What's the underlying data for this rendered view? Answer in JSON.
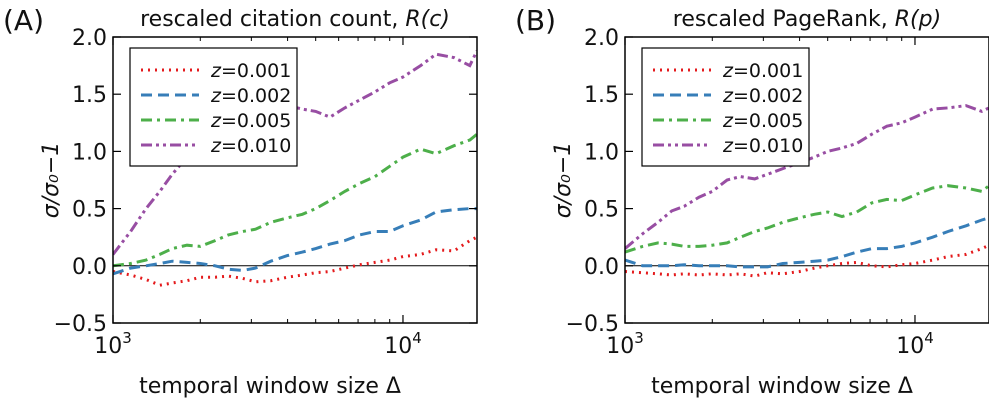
{
  "chart_data": [
    {
      "panel_label": "(A)",
      "type": "line",
      "title": "rescaled citation count, ",
      "title_math": "R(c)",
      "xlabel": "temporal window size Δ",
      "ylabel": "σ/σ₀−1",
      "xscale": "log",
      "xlim": [
        1000,
        18000
      ],
      "ylim": [
        -0.5,
        2.0
      ],
      "yticks": [
        "−0.5",
        "0.0",
        "0.5",
        "1.0",
        "1.5",
        "2.0"
      ],
      "xticks": [
        {
          "base": "10",
          "exp": "3",
          "value": 1000
        },
        {
          "base": "10",
          "exp": "4",
          "value": 10000
        }
      ],
      "grid": false,
      "legend_position": "top-left",
      "series": [
        {
          "name": "z=0.001",
          "name_var": "z",
          "name_val": "=0.001",
          "color": "#e41a1c",
          "dash": "dotted",
          "x": [
            1000,
            1150,
            1300,
            1450,
            1600,
            1800,
            2000,
            2250,
            2500,
            2800,
            3100,
            3500,
            4000,
            4500,
            5000,
            5600,
            6300,
            7100,
            8000,
            9000,
            10000,
            11500,
            13000,
            15000,
            17000,
            18000
          ],
          "y": [
            -0.05,
            -0.08,
            -0.12,
            -0.17,
            -0.15,
            -0.13,
            -0.1,
            -0.1,
            -0.09,
            -0.11,
            -0.14,
            -0.13,
            -0.1,
            -0.08,
            -0.06,
            -0.05,
            -0.02,
            0.01,
            0.03,
            0.05,
            0.08,
            0.1,
            0.14,
            0.13,
            0.22,
            0.25
          ]
        },
        {
          "name": "z=0.002",
          "name_var": "z",
          "name_val": "=0.002",
          "color": "#377eb8",
          "dash": "dashed",
          "x": [
            1000,
            1150,
            1300,
            1450,
            1600,
            1800,
            2000,
            2250,
            2500,
            2800,
            3100,
            3500,
            4000,
            4500,
            5000,
            5600,
            6300,
            7100,
            8000,
            9000,
            10000,
            11500,
            13000,
            15000,
            17000,
            18000
          ],
          "y": [
            -0.07,
            -0.02,
            0.0,
            0.02,
            0.04,
            0.03,
            0.02,
            0.0,
            -0.03,
            -0.04,
            -0.02,
            0.04,
            0.09,
            0.12,
            0.15,
            0.19,
            0.22,
            0.27,
            0.3,
            0.3,
            0.35,
            0.4,
            0.47,
            0.49,
            0.5,
            0.5
          ]
        },
        {
          "name": "z=0.005",
          "name_var": "z",
          "name_val": "=0.005",
          "color": "#4daf4a",
          "dash": "dashdot",
          "x": [
            1000,
            1150,
            1300,
            1450,
            1600,
            1800,
            2000,
            2250,
            2500,
            2800,
            3100,
            3500,
            4000,
            4500,
            5000,
            5600,
            6300,
            7100,
            8000,
            9000,
            10000,
            11500,
            13000,
            15000,
            17000,
            18000
          ],
          "y": [
            0.0,
            0.02,
            0.05,
            0.1,
            0.15,
            0.18,
            0.17,
            0.22,
            0.27,
            0.3,
            0.32,
            0.38,
            0.42,
            0.45,
            0.5,
            0.57,
            0.65,
            0.72,
            0.78,
            0.87,
            0.95,
            1.02,
            0.98,
            1.05,
            1.1,
            1.15
          ]
        },
        {
          "name": "z=0.010",
          "name_var": "z",
          "name_val": "=0.010",
          "color": "#984ea3",
          "dash": "dashdotdot",
          "x": [
            1000,
            1150,
            1300,
            1450,
            1600,
            1800,
            2000,
            2250,
            2500,
            2800,
            3100,
            3500,
            4000,
            4500,
            5000,
            5600,
            6300,
            7100,
            8000,
            9000,
            10000,
            11500,
            13000,
            15000,
            17000,
            18000
          ],
          "y": [
            0.1,
            0.3,
            0.5,
            0.65,
            0.8,
            0.95,
            1.08,
            1.15,
            1.2,
            1.25,
            1.3,
            1.33,
            1.4,
            1.37,
            1.35,
            1.3,
            1.38,
            1.45,
            1.52,
            1.6,
            1.65,
            1.75,
            1.85,
            1.82,
            1.75,
            1.88
          ]
        }
      ]
    },
    {
      "panel_label": "(B)",
      "type": "line",
      "title": "rescaled PageRank, ",
      "title_math": "R(p)",
      "xlabel": "temporal window size Δ",
      "ylabel": "σ/σ₀−1",
      "xscale": "log",
      "xlim": [
        1000,
        18000
      ],
      "ylim": [
        -0.5,
        2.0
      ],
      "yticks": [
        "−0.5",
        "0.0",
        "0.5",
        "1.0",
        "1.5",
        "2.0"
      ],
      "xticks": [
        {
          "base": "10",
          "exp": "3",
          "value": 1000
        },
        {
          "base": "10",
          "exp": "4",
          "value": 10000
        }
      ],
      "grid": false,
      "legend_position": "top-left",
      "series": [
        {
          "name": "z=0.001",
          "name_var": "z",
          "name_val": "=0.001",
          "color": "#e41a1c",
          "dash": "dotted",
          "x": [
            1000,
            1150,
            1300,
            1450,
            1600,
            1800,
            2000,
            2250,
            2500,
            2800,
            3100,
            3500,
            4000,
            4500,
            5000,
            5600,
            6300,
            7100,
            8000,
            9000,
            10000,
            11500,
            13000,
            15000,
            17000,
            18000
          ],
          "y": [
            -0.05,
            -0.06,
            -0.07,
            -0.08,
            -0.07,
            -0.08,
            -0.07,
            -0.08,
            -0.07,
            -0.09,
            -0.06,
            -0.07,
            -0.05,
            -0.02,
            0.0,
            0.02,
            0.03,
            0.0,
            -0.01,
            0.01,
            0.02,
            0.05,
            0.08,
            0.1,
            0.15,
            0.18
          ]
        },
        {
          "name": "z=0.002",
          "name_var": "z",
          "name_val": "=0.002",
          "color": "#377eb8",
          "dash": "dashed",
          "x": [
            1000,
            1150,
            1300,
            1450,
            1600,
            1800,
            2000,
            2250,
            2500,
            2800,
            3100,
            3500,
            4000,
            4500,
            5000,
            5600,
            6300,
            7100,
            8000,
            9000,
            10000,
            11500,
            13000,
            15000,
            17000,
            18000
          ],
          "y": [
            0.05,
            0.0,
            0.0,
            0.0,
            0.01,
            0.0,
            0.0,
            0.0,
            -0.01,
            -0.01,
            -0.01,
            0.02,
            0.03,
            0.04,
            0.05,
            0.08,
            0.12,
            0.15,
            0.15,
            0.17,
            0.2,
            0.25,
            0.3,
            0.35,
            0.4,
            0.42
          ]
        },
        {
          "name": "z=0.005",
          "name_var": "z",
          "name_val": "=0.005",
          "color": "#4daf4a",
          "dash": "dashdot",
          "x": [
            1000,
            1150,
            1300,
            1450,
            1600,
            1800,
            2000,
            2250,
            2500,
            2800,
            3100,
            3500,
            4000,
            4500,
            5000,
            5600,
            6300,
            7100,
            8000,
            9000,
            10000,
            11500,
            13000,
            15000,
            17000,
            18000
          ],
          "y": [
            0.12,
            0.17,
            0.2,
            0.19,
            0.17,
            0.17,
            0.18,
            0.2,
            0.25,
            0.3,
            0.33,
            0.38,
            0.42,
            0.45,
            0.47,
            0.43,
            0.47,
            0.55,
            0.58,
            0.57,
            0.62,
            0.68,
            0.7,
            0.68,
            0.65,
            0.7
          ]
        },
        {
          "name": "z=0.010",
          "name_var": "z",
          "name_val": "=0.010",
          "color": "#984ea3",
          "dash": "dashdotdot",
          "x": [
            1000,
            1150,
            1300,
            1450,
            1600,
            1800,
            2000,
            2250,
            2500,
            2800,
            3100,
            3500,
            4000,
            4500,
            5000,
            5600,
            6300,
            7100,
            8000,
            9000,
            10000,
            11500,
            13000,
            15000,
            17000,
            18000
          ],
          "y": [
            0.15,
            0.28,
            0.38,
            0.48,
            0.52,
            0.6,
            0.65,
            0.75,
            0.78,
            0.76,
            0.8,
            0.85,
            0.9,
            0.95,
            1.0,
            1.03,
            1.07,
            1.15,
            1.22,
            1.25,
            1.3,
            1.37,
            1.38,
            1.4,
            1.35,
            1.38
          ]
        }
      ]
    }
  ]
}
